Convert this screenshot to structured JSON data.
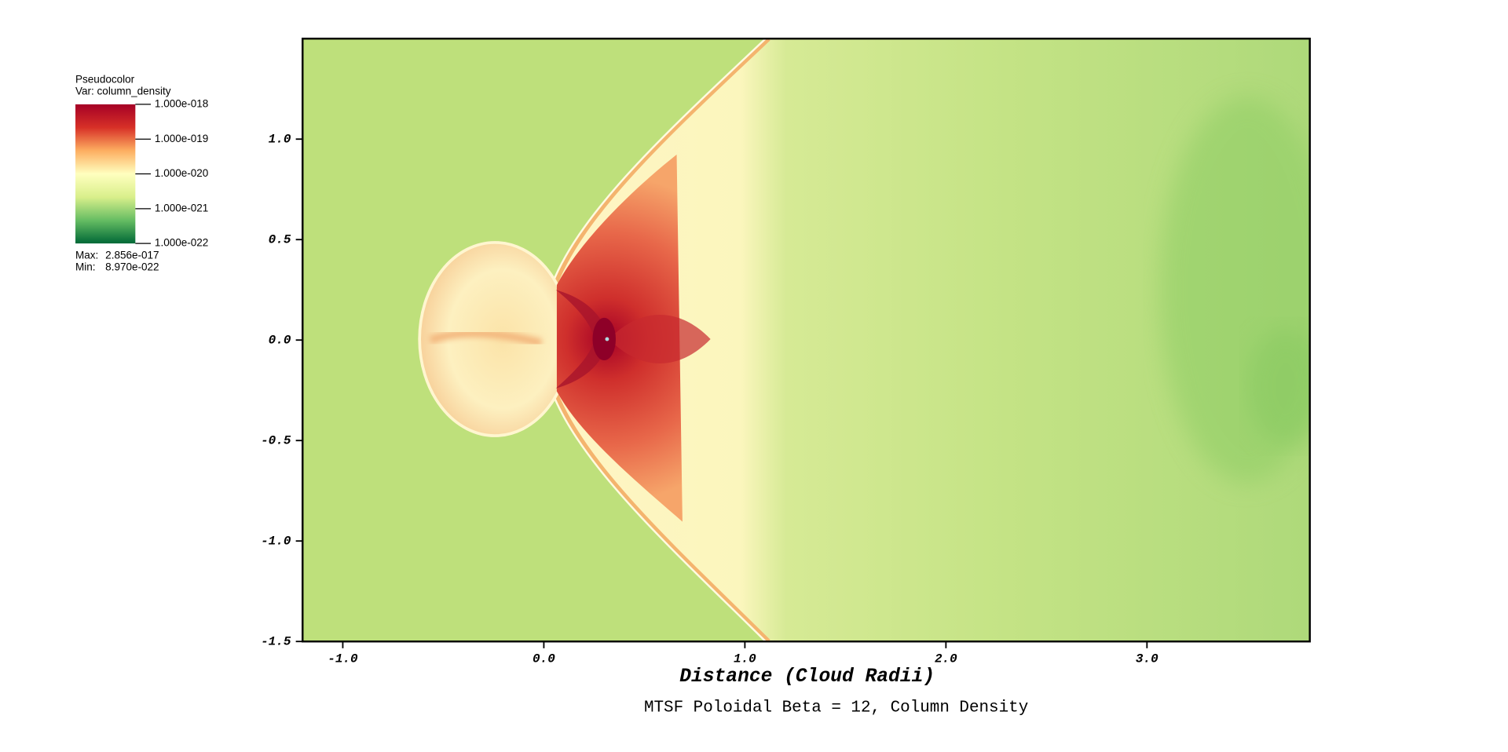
{
  "chart_data": {
    "type": "image",
    "title": "MTSF Poloidal Beta = 12, Column Density",
    "x_label": "Distance (Cloud Radii)",
    "xlim": [
      -1.2,
      3.81
    ],
    "ylim": [
      -1.5,
      1.5
    ],
    "xticks": [
      {
        "value": -1,
        "label": "-1.0"
      },
      {
        "value": 0,
        "label": "0.0"
      },
      {
        "value": 1,
        "label": "1.0"
      },
      {
        "value": 2,
        "label": "2.0"
      },
      {
        "value": 3,
        "label": "3.0"
      }
    ],
    "yticks": [
      {
        "value": 1,
        "label": "1.0"
      },
      {
        "value": 0.5,
        "label": "0.5"
      },
      {
        "value": 0,
        "label": "0.0"
      },
      {
        "value": -0.5,
        "label": "-0.5"
      },
      {
        "value": -1,
        "label": "-1.0"
      },
      {
        "value": -1.5,
        "label": "-1.5"
      }
    ],
    "legend": {
      "title": "Pseudocolor",
      "variable": "Var: column_density",
      "log_scale": true,
      "clim": [
        1e-22,
        1e-18
      ],
      "colormap": [
        "#006837",
        "#66bd63",
        "#d9ef8b",
        "#ffffbf",
        "#fdae61",
        "#d73027",
        "#a50026"
      ],
      "ticks": [
        {
          "value": 1e-18,
          "label": "1.000e-018"
        },
        {
          "value": 1e-19,
          "label": "1.000e-019"
        },
        {
          "value": 1e-20,
          "label": "1.000e-020"
        },
        {
          "value": 1e-21,
          "label": "1.000e-021"
        },
        {
          "value": 1e-22,
          "label": "1.000e-022"
        }
      ],
      "max_label": "Max:",
      "max": {
        "value": 2.856e-17,
        "label": "2.856e-017"
      },
      "min_label": "Min:",
      "min": {
        "value": 8.97e-22,
        "label": "8.970e-022"
      }
    }
  }
}
